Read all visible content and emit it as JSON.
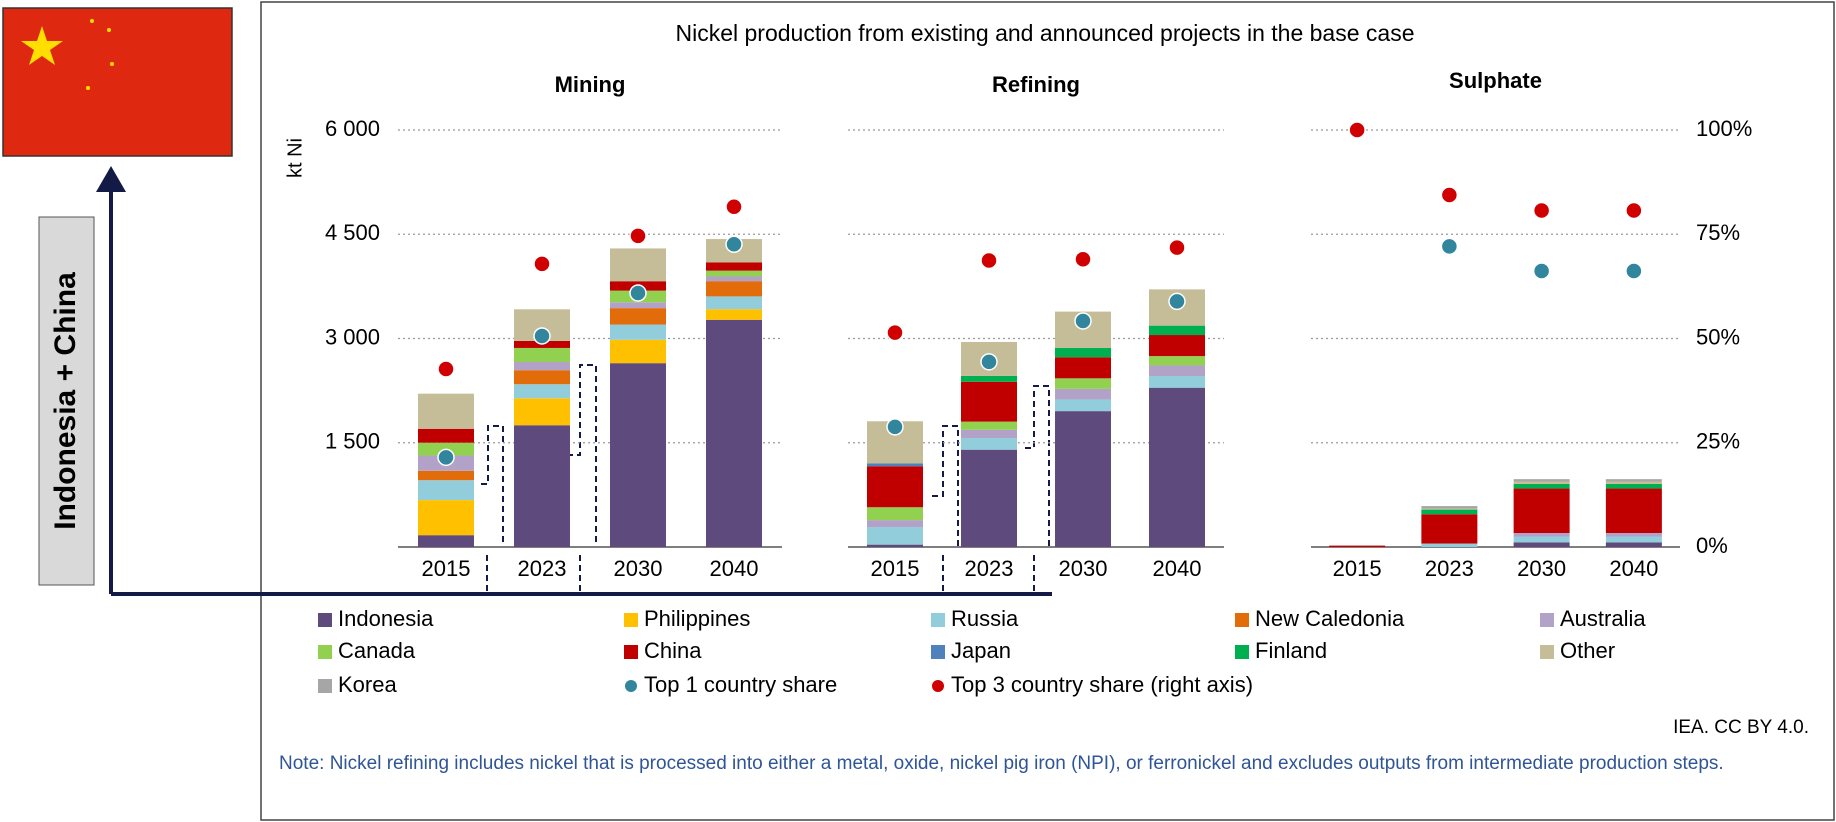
{
  "chart_data": {
    "type": "bar",
    "stacked": true,
    "title": "Nickel production from existing and announced projects in the base case",
    "panels": [
      "Mining",
      "Refining",
      "Sulphate"
    ],
    "ylabel": "kt Ni",
    "categories": [
      "2015",
      "2023",
      "2030",
      "2040",
      "2015",
      "2023",
      "2030",
      "2040",
      "2015",
      "2023",
      "2030",
      "2040"
    ],
    "ylim": [
      0,
      6000
    ],
    "yticks": [
      {
        "value": 1500,
        "label": "1 500"
      },
      {
        "value": 3000,
        "label": "3 000"
      },
      {
        "value": 4500,
        "label": "4 500"
      },
      {
        "value": 6000,
        "label": "6 000"
      }
    ],
    "y2lim": [
      0,
      100
    ],
    "y2ticks": [
      {
        "value": 0,
        "label": "0%"
      },
      {
        "value": 25,
        "label": "25%"
      },
      {
        "value": 50,
        "label": "50%"
      },
      {
        "value": 75,
        "label": "75%"
      },
      {
        "value": 100,
        "label": "100%"
      }
    ],
    "grid": true,
    "series": [
      {
        "name": "Indonesia",
        "color": "#5e4a7d",
        "values": [
          170,
          1752,
          2645,
          3269,
          34,
          1400,
          1955,
          2292,
          0,
          0,
          67,
          67
        ]
      },
      {
        "name": "Philippines",
        "color": "#ffc000",
        "values": [
          505,
          388,
          337,
          152,
          0,
          0,
          0,
          0,
          0,
          0,
          0,
          0
        ]
      },
      {
        "name": "Russia",
        "color": "#92cddc",
        "values": [
          286,
          202,
          219,
          185,
          253,
          168,
          168,
          168,
          0,
          50,
          84,
          84
        ]
      },
      {
        "name": "New Caledonia",
        "color": "#e36c0a",
        "values": [
          135,
          202,
          236,
          219,
          0,
          0,
          0,
          0,
          0,
          0,
          0,
          0
        ]
      },
      {
        "name": "Australia",
        "color": "#b3a2c7",
        "values": [
          220,
          118,
          84,
          67,
          100,
          118,
          152,
          152,
          0,
          0,
          50,
          50
        ]
      },
      {
        "name": "Canada",
        "color": "#92d050",
        "values": [
          185,
          202,
          168,
          84,
          185,
          118,
          152,
          135,
          0,
          0,
          0,
          0
        ]
      },
      {
        "name": "China",
        "color": "#c00000",
        "values": [
          200,
          101,
          135,
          118,
          590,
          573,
          303,
          303,
          20,
          421,
          640,
          640
        ]
      },
      {
        "name": "Japan",
        "color": "#4f81bd",
        "values": [
          0,
          0,
          0,
          0,
          40,
          0,
          0,
          0,
          0,
          0,
          0,
          0
        ]
      },
      {
        "name": "Finland",
        "color": "#00b050",
        "values": [
          0,
          0,
          0,
          0,
          0,
          84,
          135,
          135,
          0,
          67,
          67,
          67
        ]
      },
      {
        "name": "Other",
        "color": "#c4bd97",
        "values": [
          505,
          455,
          472,
          337,
          607,
          489,
          522,
          522,
          0,
          17,
          34,
          34
        ]
      },
      {
        "name": "Korea",
        "color": "#a6a6a6",
        "values": [
          0,
          0,
          0,
          0,
          0,
          0,
          0,
          0,
          0,
          34,
          34,
          34
        ]
      },
      {
        "name": "Top 1 country share",
        "color": "#31859c",
        "type": "scatter",
        "axis": "y2",
        "values": [
          21.5,
          50.6,
          60.9,
          72.6,
          28.8,
          44.4,
          54.2,
          58.9,
          null,
          72.1,
          66.2,
          66.2
        ]
      },
      {
        "name": "Top 3 country share (right axis)",
        "color": "#d00000",
        "type": "scatter",
        "axis": "y2",
        "values": [
          42.7,
          67.9,
          74.6,
          81.6,
          51.4,
          68.7,
          69,
          71.8,
          100,
          84.4,
          80.7,
          80.7
        ]
      }
    ]
  },
  "annotations": {
    "side_label": "Indonesia + China",
    "source": "IEA. CC BY 4.0.",
    "note": "Note: Nickel refining includes nickel that is processed into either a metal, oxide, nickel pig iron (NPI), or ferronickel and excludes outputs from intermediate production steps."
  }
}
